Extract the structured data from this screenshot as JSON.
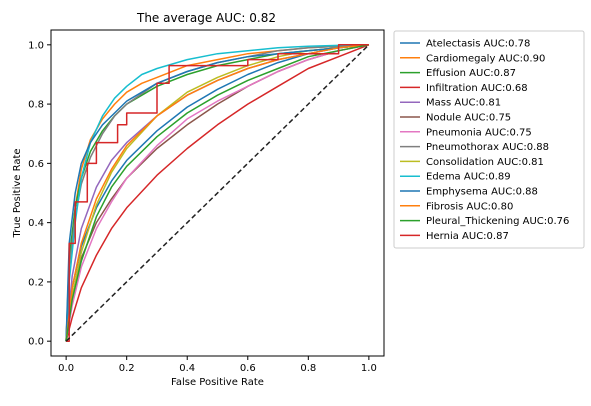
{
  "chart_data": {
    "type": "line",
    "title": "The average AUC: 0.82",
    "xlabel": "False Positive Rate",
    "ylabel": "True Positive Rate",
    "xlim": [
      -0.05,
      1.05
    ],
    "ylim": [
      -0.05,
      1.05
    ],
    "xticks": [
      "0.0",
      "0.2",
      "0.4",
      "0.6",
      "0.8",
      "1.0"
    ],
    "yticks": [
      "0.0",
      "0.2",
      "0.4",
      "0.6",
      "0.8",
      "1.0"
    ],
    "grid": false,
    "legend_position": "outside-right",
    "diagonal": {
      "x": [
        0,
        1
      ],
      "y": [
        0,
        1
      ],
      "style": "dashed",
      "color": "#222222"
    },
    "series": [
      {
        "name": "Atelectasis  AUC:0.78",
        "color": "#1f77b4",
        "x": [
          0,
          0.02,
          0.05,
          0.1,
          0.15,
          0.2,
          0.3,
          0.4,
          0.5,
          0.6,
          0.7,
          0.8,
          0.9,
          1.0
        ],
        "y": [
          0,
          0.18,
          0.32,
          0.45,
          0.54,
          0.61,
          0.71,
          0.79,
          0.85,
          0.9,
          0.94,
          0.97,
          0.99,
          1.0
        ]
      },
      {
        "name": "Cardiomegaly  AUC:0.90",
        "color": "#ff7f0e",
        "x": [
          0,
          0.01,
          0.03,
          0.05,
          0.08,
          0.12,
          0.16,
          0.2,
          0.25,
          0.3,
          0.4,
          0.5,
          0.6,
          0.7,
          0.8,
          0.9,
          1.0
        ],
        "y": [
          0,
          0.25,
          0.45,
          0.58,
          0.68,
          0.75,
          0.8,
          0.84,
          0.87,
          0.89,
          0.93,
          0.95,
          0.97,
          0.98,
          0.99,
          0.995,
          1.0
        ]
      },
      {
        "name": "Effusion  AUC:0.87",
        "color": "#2ca02c",
        "x": [
          0,
          0.01,
          0.03,
          0.05,
          0.08,
          0.12,
          0.16,
          0.2,
          0.3,
          0.4,
          0.5,
          0.6,
          0.7,
          0.8,
          0.9,
          1.0
        ],
        "y": [
          0,
          0.28,
          0.45,
          0.55,
          0.64,
          0.71,
          0.76,
          0.8,
          0.86,
          0.9,
          0.93,
          0.95,
          0.97,
          0.98,
          0.99,
          1.0
        ]
      },
      {
        "name": "Infiltration  AUC:0.68",
        "color": "#d62728",
        "x": [
          0,
          0.02,
          0.05,
          0.1,
          0.15,
          0.2,
          0.3,
          0.4,
          0.5,
          0.6,
          0.7,
          0.8,
          0.9,
          1.0
        ],
        "y": [
          0,
          0.08,
          0.18,
          0.29,
          0.38,
          0.45,
          0.56,
          0.65,
          0.73,
          0.8,
          0.86,
          0.92,
          0.96,
          1.0
        ]
      },
      {
        "name": "Mass  AUC:0.81",
        "color": "#9467bd",
        "x": [
          0,
          0.02,
          0.05,
          0.1,
          0.15,
          0.2,
          0.3,
          0.4,
          0.5,
          0.6,
          0.7,
          0.8,
          0.9,
          1.0
        ],
        "y": [
          0,
          0.22,
          0.38,
          0.52,
          0.61,
          0.67,
          0.76,
          0.83,
          0.88,
          0.92,
          0.95,
          0.97,
          0.99,
          1.0
        ]
      },
      {
        "name": "Nodule  AUC:0.75",
        "color": "#8c564b",
        "x": [
          0,
          0.02,
          0.05,
          0.1,
          0.15,
          0.2,
          0.3,
          0.4,
          0.5,
          0.6,
          0.7,
          0.8,
          0.9,
          1.0
        ],
        "y": [
          0,
          0.15,
          0.28,
          0.4,
          0.48,
          0.55,
          0.65,
          0.73,
          0.8,
          0.86,
          0.91,
          0.95,
          0.98,
          1.0
        ]
      },
      {
        "name": "Pneumonia  AUC:0.75",
        "color": "#e377c2",
        "x": [
          0,
          0.02,
          0.05,
          0.1,
          0.15,
          0.2,
          0.3,
          0.4,
          0.5,
          0.6,
          0.7,
          0.8,
          0.9,
          1.0
        ],
        "y": [
          0,
          0.12,
          0.25,
          0.38,
          0.47,
          0.55,
          0.66,
          0.75,
          0.81,
          0.86,
          0.91,
          0.95,
          0.98,
          1.0
        ]
      },
      {
        "name": "Pneumothorax  AUC:0.88",
        "color": "#7f7f7f",
        "x": [
          0,
          0.01,
          0.03,
          0.05,
          0.08,
          0.12,
          0.16,
          0.2,
          0.3,
          0.4,
          0.5,
          0.6,
          0.7,
          0.8,
          0.9,
          1.0
        ],
        "y": [
          0,
          0.25,
          0.42,
          0.53,
          0.62,
          0.7,
          0.76,
          0.8,
          0.87,
          0.91,
          0.94,
          0.96,
          0.98,
          0.99,
          0.995,
          1.0
        ]
      },
      {
        "name": "Consolidation  AUC:0.81",
        "color": "#bcbd22",
        "x": [
          0,
          0.02,
          0.05,
          0.1,
          0.15,
          0.2,
          0.3,
          0.4,
          0.5,
          0.6,
          0.7,
          0.8,
          0.9,
          1.0
        ],
        "y": [
          0,
          0.15,
          0.3,
          0.46,
          0.57,
          0.65,
          0.76,
          0.84,
          0.89,
          0.93,
          0.96,
          0.98,
          0.99,
          1.0
        ]
      },
      {
        "name": "Edema  AUC:0.89",
        "color": "#17becf",
        "x": [
          0,
          0.01,
          0.03,
          0.05,
          0.08,
          0.12,
          0.16,
          0.2,
          0.25,
          0.3,
          0.4,
          0.5,
          0.6,
          0.7,
          0.8,
          0.9,
          1.0
        ],
        "y": [
          0,
          0.2,
          0.4,
          0.55,
          0.67,
          0.76,
          0.82,
          0.86,
          0.9,
          0.92,
          0.95,
          0.97,
          0.98,
          0.99,
          0.995,
          0.998,
          1.0
        ]
      },
      {
        "name": "Emphysema  AUC:0.88",
        "color": "#1f77b4",
        "x": [
          0,
          0.01,
          0.03,
          0.05,
          0.08,
          0.12,
          0.16,
          0.2,
          0.3,
          0.4,
          0.5,
          0.6,
          0.7,
          0.8,
          0.9,
          1.0
        ],
        "y": [
          0,
          0.33,
          0.5,
          0.6,
          0.67,
          0.73,
          0.77,
          0.81,
          0.87,
          0.91,
          0.94,
          0.96,
          0.97,
          0.98,
          0.99,
          1.0
        ]
      },
      {
        "name": "Fibrosis  AUC:0.80",
        "color": "#ff7f0e",
        "x": [
          0,
          0.02,
          0.05,
          0.1,
          0.15,
          0.2,
          0.3,
          0.4,
          0.5,
          0.6,
          0.7,
          0.8,
          0.9,
          1.0
        ],
        "y": [
          0,
          0.18,
          0.33,
          0.48,
          0.58,
          0.66,
          0.76,
          0.83,
          0.88,
          0.92,
          0.95,
          0.97,
          0.99,
          1.0
        ]
      },
      {
        "name": "Pleural_Thickening  AUC:0.76",
        "color": "#2ca02c",
        "x": [
          0,
          0.02,
          0.05,
          0.1,
          0.15,
          0.2,
          0.3,
          0.4,
          0.5,
          0.6,
          0.7,
          0.8,
          0.9,
          1.0
        ],
        "y": [
          0,
          0.14,
          0.27,
          0.42,
          0.52,
          0.59,
          0.69,
          0.77,
          0.83,
          0.88,
          0.92,
          0.96,
          0.98,
          1.0
        ]
      },
      {
        "name": "Hernia  AUC:0.87",
        "color": "#d62728",
        "step": true,
        "x": [
          0,
          0.01,
          0.01,
          0.03,
          0.03,
          0.07,
          0.07,
          0.1,
          0.1,
          0.17,
          0.17,
          0.2,
          0.2,
          0.3,
          0.3,
          0.34,
          0.34,
          0.4,
          0.4,
          0.5,
          0.5,
          0.6,
          0.6,
          0.7,
          0.7,
          0.8,
          0.8,
          0.9,
          0.9,
          0.95,
          0.95,
          1.0
        ],
        "y": [
          0,
          0,
          0.33,
          0.33,
          0.47,
          0.47,
          0.6,
          0.6,
          0.67,
          0.67,
          0.73,
          0.73,
          0.77,
          0.77,
          0.87,
          0.87,
          0.93,
          0.93,
          0.93,
          0.93,
          0.93,
          0.93,
          0.95,
          0.95,
          0.97,
          0.97,
          0.97,
          0.97,
          1.0,
          1.0,
          1.0,
          1.0
        ]
      }
    ]
  }
}
